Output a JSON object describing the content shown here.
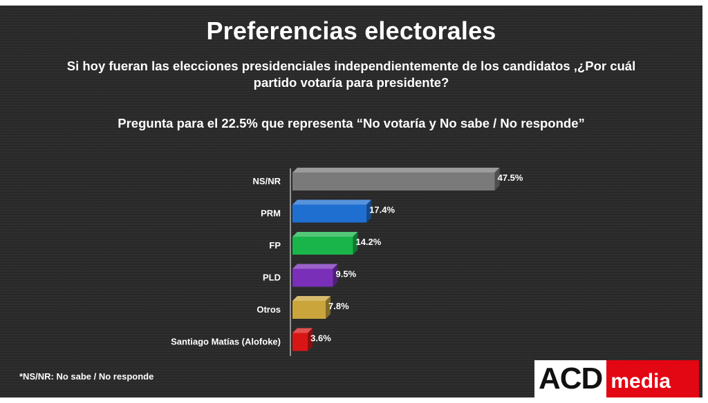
{
  "title": "Preferencias electorales",
  "subtitle": "Si hoy fueran las elecciones presidenciales independientemente de los candidatos ,¿Por cuál partido votaría para presidente?",
  "question": "Pregunta para el 22.5% que representa “No votaría y No sabe / No responde”",
  "footnote": "*NS/NR: No sabe / No responde",
  "logo": {
    "part1": "ACD",
    "part2": "media"
  },
  "chart_data": {
    "type": "bar",
    "orientation": "horizontal",
    "categories": [
      "NS/NR",
      "PRM",
      "FP",
      "PLD",
      "Otros",
      "Santiago Matías (Alofoke)"
    ],
    "values": [
      47.5,
      17.4,
      14.2,
      9.5,
      7.8,
      3.6
    ],
    "value_labels": [
      "47.5%",
      "17.4%",
      "14.2%",
      "9.5%",
      "7.8%",
      "3.6%"
    ],
    "colors": [
      "#7a7a7a",
      "#1f6fd1",
      "#19b54a",
      "#7a2fb8",
      "#c9a53c",
      "#d91616"
    ],
    "xlim": [
      0,
      50
    ],
    "grid": false,
    "legend": "none"
  }
}
